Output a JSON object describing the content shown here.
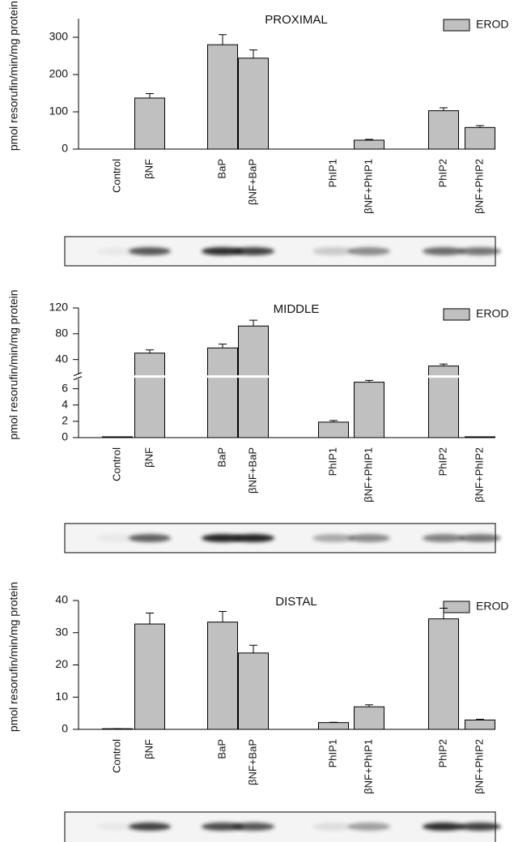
{
  "chart_data": [
    {
      "type": "bar",
      "title": "PROXIMAL",
      "ylabel": "pmol resorufin/min/mg protein",
      "categories": [
        "Control",
        "βNF",
        "BaP",
        "βNF+BaP",
        "PhIP1",
        "βNF+PhIP1",
        "PhIP2",
        "βNF+PhIP2"
      ],
      "series": [
        {
          "name": "EROD",
          "color": "#c0c0c0",
          "values": [
            0,
            137,
            280,
            244,
            0,
            24,
            103,
            58
          ],
          "errors": [
            0,
            12,
            27,
            22,
            0,
            2,
            8,
            5
          ]
        }
      ],
      "ylim": [
        0,
        350
      ],
      "yticks": [
        0,
        100,
        200,
        300
      ]
    },
    {
      "type": "bar",
      "title": "MIDDLE",
      "ylabel": "pmol resorufin/min/mg protein",
      "categories": [
        "Control",
        "βNF",
        "BaP",
        "βNF+BaP",
        "PhIP1",
        "βNF+PhIP1",
        "PhIP2",
        "βNF+PhIP2"
      ],
      "series": [
        {
          "name": "EROD",
          "color": "#c0c0c0",
          "values": [
            0.1,
            50,
            58,
            92,
            1.9,
            6.8,
            30,
            0.1
          ],
          "errors": [
            0,
            5,
            6,
            9,
            0.2,
            0.9,
            3,
            0
          ]
        }
      ],
      "ylim": [
        0,
        120
      ],
      "ybreak": [
        7,
        20
      ],
      "yticks": [
        0,
        2,
        4,
        6,
        40,
        80,
        120
      ]
    },
    {
      "type": "bar",
      "title": "DISTAL",
      "ylabel": "pmol resorufin/min/mg protein",
      "categories": [
        "Control",
        "βNF",
        "BaP",
        "βNF+BaP",
        "PhIP1",
        "βNF+PhIP1",
        "PhIP2",
        "βNF+PhIP2"
      ],
      "series": [
        {
          "name": "EROD",
          "color": "#c0c0c0",
          "values": [
            0.2,
            32.7,
            33.3,
            23.7,
            2.1,
            7.0,
            34.3,
            2.9
          ],
          "errors": [
            0,
            3.4,
            3.3,
            2.4,
            0.1,
            0.6,
            3.3,
            0.2
          ]
        }
      ],
      "ylim": [
        0,
        40
      ],
      "yticks": [
        0,
        10,
        20,
        30,
        40
      ]
    }
  ]
}
